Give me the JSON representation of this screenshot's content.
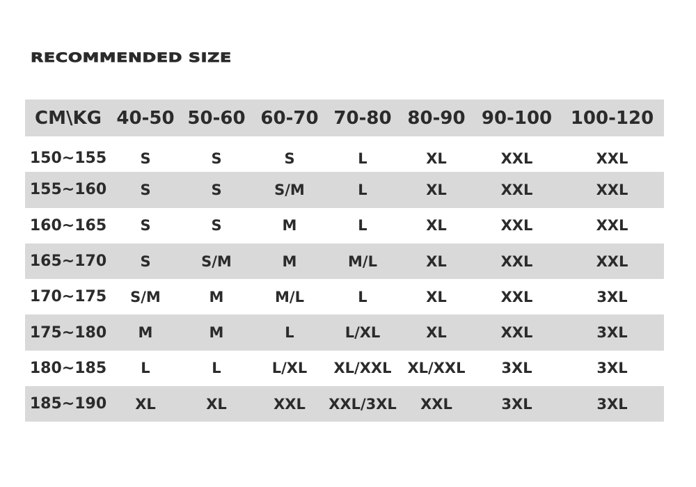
{
  "title": "RECOMMENDED SIZE",
  "colors": {
    "band": "#d9d9d9",
    "text": "#2b2b2b"
  },
  "table": {
    "headers": [
      "CM\\KG",
      "40-50",
      "50-60",
      "60-70",
      "70-80",
      "80-90",
      "90-100",
      "100-120"
    ],
    "rows": [
      [
        "150~155",
        "S",
        "S",
        "S",
        "L",
        "XL",
        "XXL",
        "XXL"
      ],
      [
        "155~160",
        "S",
        "S",
        "S/M",
        "L",
        "XL",
        "XXL",
        "XXL"
      ],
      [
        "160~165",
        "S",
        "S",
        "M",
        "L",
        "XL",
        "XXL",
        "XXL"
      ],
      [
        "165~170",
        "S",
        "S/M",
        "M",
        "M/L",
        "XL",
        "XXL",
        "XXL"
      ],
      [
        "170~175",
        "S/M",
        "M",
        "M/L",
        "L",
        "XL",
        "XXL",
        "3XL"
      ],
      [
        "175~180",
        "M",
        "M",
        "L",
        "L/XL",
        "XL",
        "XXL",
        "3XL"
      ],
      [
        "180~185",
        "L",
        "L",
        "L/XL",
        "XL/XXL",
        "XL/XXL",
        "3XL",
        "3XL"
      ],
      [
        "185~190",
        "XL",
        "XL",
        "XXL",
        "XXL/3XL",
        "XXL",
        "3XL",
        "3XL"
      ]
    ]
  }
}
